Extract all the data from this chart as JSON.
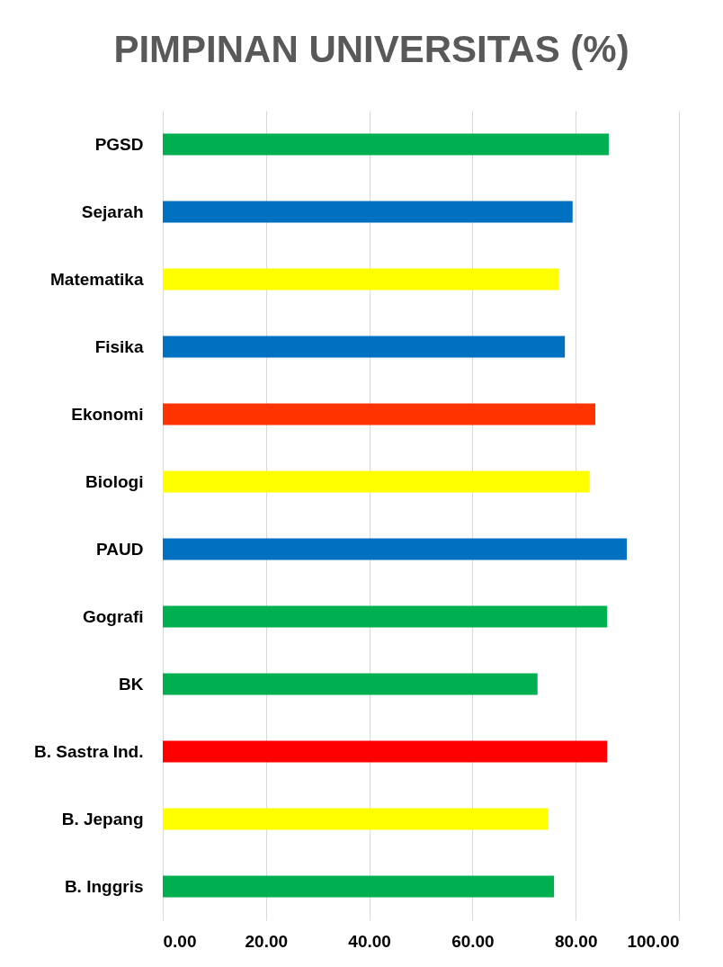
{
  "chart_data": {
    "type": "bar",
    "orientation": "horizontal",
    "title": "PIMPINAN UNIVERSITAS (%)",
    "categories": [
      "PGSD",
      "Sejarah",
      "Matematika",
      "Fisika",
      "Ekonomi",
      "Biologi",
      "PAUD",
      "Gografi",
      "BK",
      "B. Sastra Ind.",
      "B. Jepang",
      "B. Inggris"
    ],
    "values": [
      86.4,
      79.4,
      76.7,
      77.9,
      83.8,
      82.6,
      89.9,
      86.1,
      72.6,
      86.1,
      74.6,
      75.8
    ],
    "colors": [
      "#00b050",
      "#0070c0",
      "#ffff00",
      "#0070c0",
      "#ff3300",
      "#ffff00",
      "#0070c0",
      "#00b050",
      "#00b050",
      "#ff0000",
      "#ffff00",
      "#00b050"
    ],
    "xlim": [
      0,
      100
    ],
    "xticks": [
      {
        "value": 0,
        "label": "0.00"
      },
      {
        "value": 20,
        "label": "20.00"
      },
      {
        "value": 40,
        "label": "40.00"
      },
      {
        "value": 60,
        "label": "60.00"
      },
      {
        "value": 80,
        "label": "80.00"
      },
      {
        "value": 100,
        "label": "100.00"
      }
    ],
    "grid": "x",
    "legend": false
  }
}
